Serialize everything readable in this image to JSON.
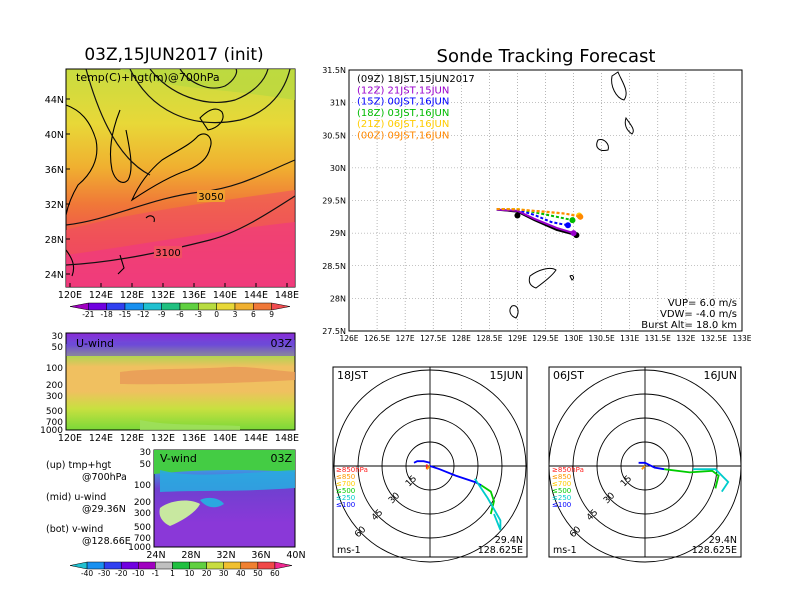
{
  "left_panel": {
    "title": "03Z,15JUN2017 (init)",
    "map_label": "temp(C)+hgt(m)@700hPa",
    "contour_labels": [
      "3050",
      "3100"
    ],
    "lat_ticks": [
      "44N",
      "40N",
      "36N",
      "32N",
      "28N",
      "24N"
    ],
    "lon_ticks": [
      "120E",
      "124E",
      "128E",
      "132E",
      "136E",
      "140E",
      "144E",
      "148E"
    ],
    "temp_colorbar": [
      "-21",
      "-18",
      "-15",
      "-12",
      "-9",
      "-6",
      "-3",
      "0",
      "3",
      "6",
      "9"
    ],
    "uwind": {
      "label": "U-wind",
      "time": "03Z",
      "pressure_ticks": [
        "30",
        "50",
        "100",
        "200",
        "300",
        "500",
        "700",
        "1000"
      ],
      "lon_ticks": [
        "120E",
        "124E",
        "128E",
        "132E",
        "136E",
        "140E",
        "144E",
        "148E"
      ]
    },
    "vwind": {
      "label": "V-wind",
      "time": "03Z",
      "pressure_ticks": [
        "30",
        "50",
        "100",
        "200",
        "300",
        "500",
        "700",
        "1000"
      ],
      "lat_ticks": [
        "24N",
        "28N",
        "32N",
        "36N",
        "40N"
      ]
    },
    "wind_colorbar": [
      "-40",
      "-30",
      "-20",
      "-10",
      "-1",
      "1",
      "10",
      "20",
      "30",
      "40",
      "50",
      "60"
    ],
    "legend_lines": [
      [
        "(up) tmp+hgt",
        "@700hPa"
      ],
      [
        "(mid) u-wind",
        "@29.36N"
      ],
      [
        "(bot) v-wind",
        "@128.66E"
      ]
    ]
  },
  "right_panel": {
    "title": "Sonde Tracking Forecast",
    "info": {
      "vup": "VUP= 6.0 m/s",
      "vdw": "VDW= -4.0 m/s",
      "burst": "Burst Alt= 18.0 km"
    },
    "polar_left": {
      "time": "18JST",
      "date": "15JUN",
      "lat": "29.4N",
      "lon": "128.625E",
      "unit": "ms-1",
      "ring_labels": [
        "15",
        "30",
        "45",
        "60"
      ],
      "pressure_legend": [
        "≥850hPa",
        "≤850",
        "≤700",
        "≤500",
        "≤250",
        "≤100"
      ]
    },
    "polar_right": {
      "time": "06JST",
      "date": "16JUN",
      "lat": "29.4N",
      "lon": "128.625E",
      "unit": "ms-1",
      "ring_labels": [
        "15",
        "30",
        "45",
        "60"
      ],
      "pressure_legend": [
        "≥850hPa",
        "≤850",
        "≤700",
        "≤500",
        "≤250",
        "≤100"
      ]
    },
    "pressure_colors": [
      "#ff2020",
      "#ff9900",
      "#ffcc00",
      "#00cc00",
      "#00cccc",
      "#0000ff"
    ]
  },
  "chart_data": {
    "type": "line",
    "title": "Sonde Tracking Forecast",
    "xlim": [
      126,
      133
    ],
    "ylim": [
      27.5,
      31.5
    ],
    "x_ticks": [
      "126E",
      "126.5E",
      "127E",
      "127.5E",
      "128E",
      "128.5E",
      "129E",
      "129.5E",
      "130E",
      "130.5E",
      "131E",
      "131.5E",
      "132E",
      "132.5E",
      "133E"
    ],
    "y_ticks": [
      "27.5N",
      "28N",
      "28.5N",
      "29N",
      "29.5N",
      "30N",
      "30.5N",
      "31N",
      "31.5N"
    ],
    "series": [
      {
        "name": "(09Z)  18JST,15JUN2017",
        "color": "#000000",
        "points": [
          [
            128.63,
            29.36
          ],
          [
            129.0,
            29.33
          ],
          [
            129.3,
            29.2
          ],
          [
            129.7,
            29.05
          ],
          [
            130.05,
            28.97
          ]
        ]
      },
      {
        "name": "(12Z)  21JST,15JUN",
        "color": "#9900cc",
        "points": [
          [
            128.63,
            29.36
          ],
          [
            129.0,
            29.34
          ],
          [
            129.3,
            29.22
          ],
          [
            129.7,
            29.08
          ],
          [
            130.0,
            29.0
          ]
        ]
      },
      {
        "name": "(15Z)  00JST,16JUN",
        "color": "#0000ff",
        "points": [
          [
            128.63,
            29.37
          ],
          [
            129.0,
            29.36
          ],
          [
            129.3,
            29.28
          ],
          [
            129.6,
            29.17
          ],
          [
            129.9,
            29.12
          ]
        ]
      },
      {
        "name": "(18Z)  03JST,16JUN",
        "color": "#00bb00",
        "points": [
          [
            128.63,
            29.37
          ],
          [
            129.0,
            29.37
          ],
          [
            129.3,
            29.32
          ],
          [
            129.7,
            29.25
          ],
          [
            129.98,
            29.2
          ]
        ]
      },
      {
        "name": "(21Z)  06JST,16JUN",
        "color": "#ffcc00",
        "points": [
          [
            128.63,
            29.37
          ],
          [
            129.0,
            29.37
          ],
          [
            129.4,
            29.33
          ],
          [
            129.8,
            29.3
          ],
          [
            130.1,
            29.27
          ]
        ]
      },
      {
        "name": "(00Z)  09JST,16JUN",
        "color": "#ff8800",
        "points": [
          [
            128.63,
            29.37
          ],
          [
            129.0,
            29.36
          ],
          [
            129.5,
            29.33
          ],
          [
            129.85,
            29.3
          ],
          [
            130.12,
            29.25
          ]
        ]
      }
    ]
  }
}
